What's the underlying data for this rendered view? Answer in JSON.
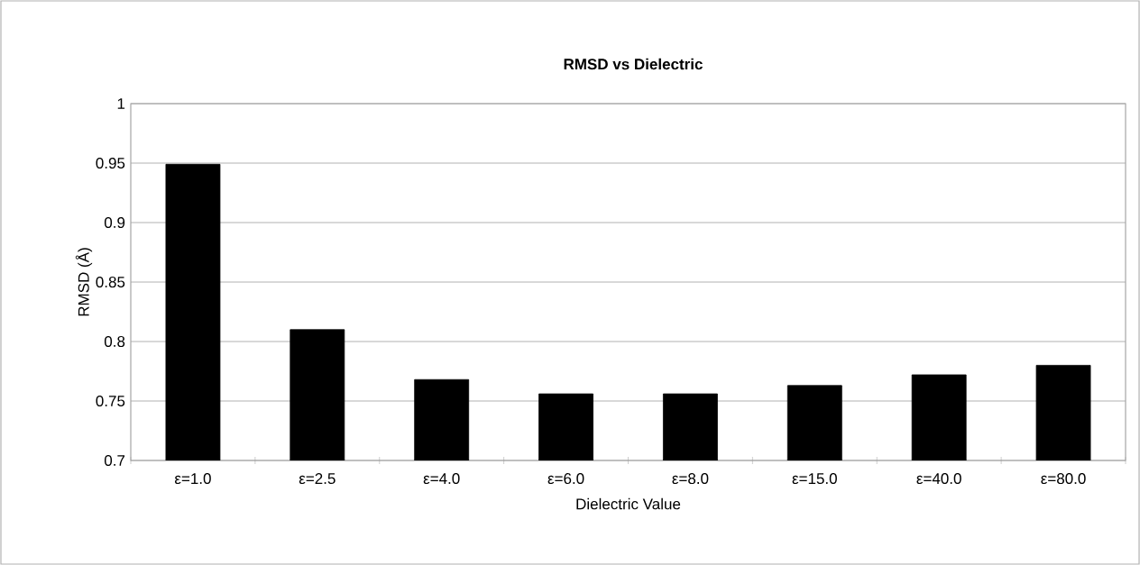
{
  "chart_data": {
    "type": "bar",
    "title": "RMSD vs Dielectric",
    "xlabel": "Dielectric Value",
    "ylabel": "RMSD (Å)",
    "categories": [
      "ε=1.0",
      "ε=2.5",
      "ε=4.0",
      "ε=6.0",
      "ε=8.0",
      "ε=15.0",
      "ε=40.0",
      "ε=80.0"
    ],
    "values": [
      0.949,
      0.81,
      0.768,
      0.756,
      0.756,
      0.763,
      0.772,
      0.78
    ],
    "color": "#000000",
    "ylim": [
      0.7,
      1
    ],
    "yticks": [
      0.7,
      0.75,
      0.8,
      0.85,
      0.9,
      0.95,
      1
    ],
    "grid": "y"
  }
}
